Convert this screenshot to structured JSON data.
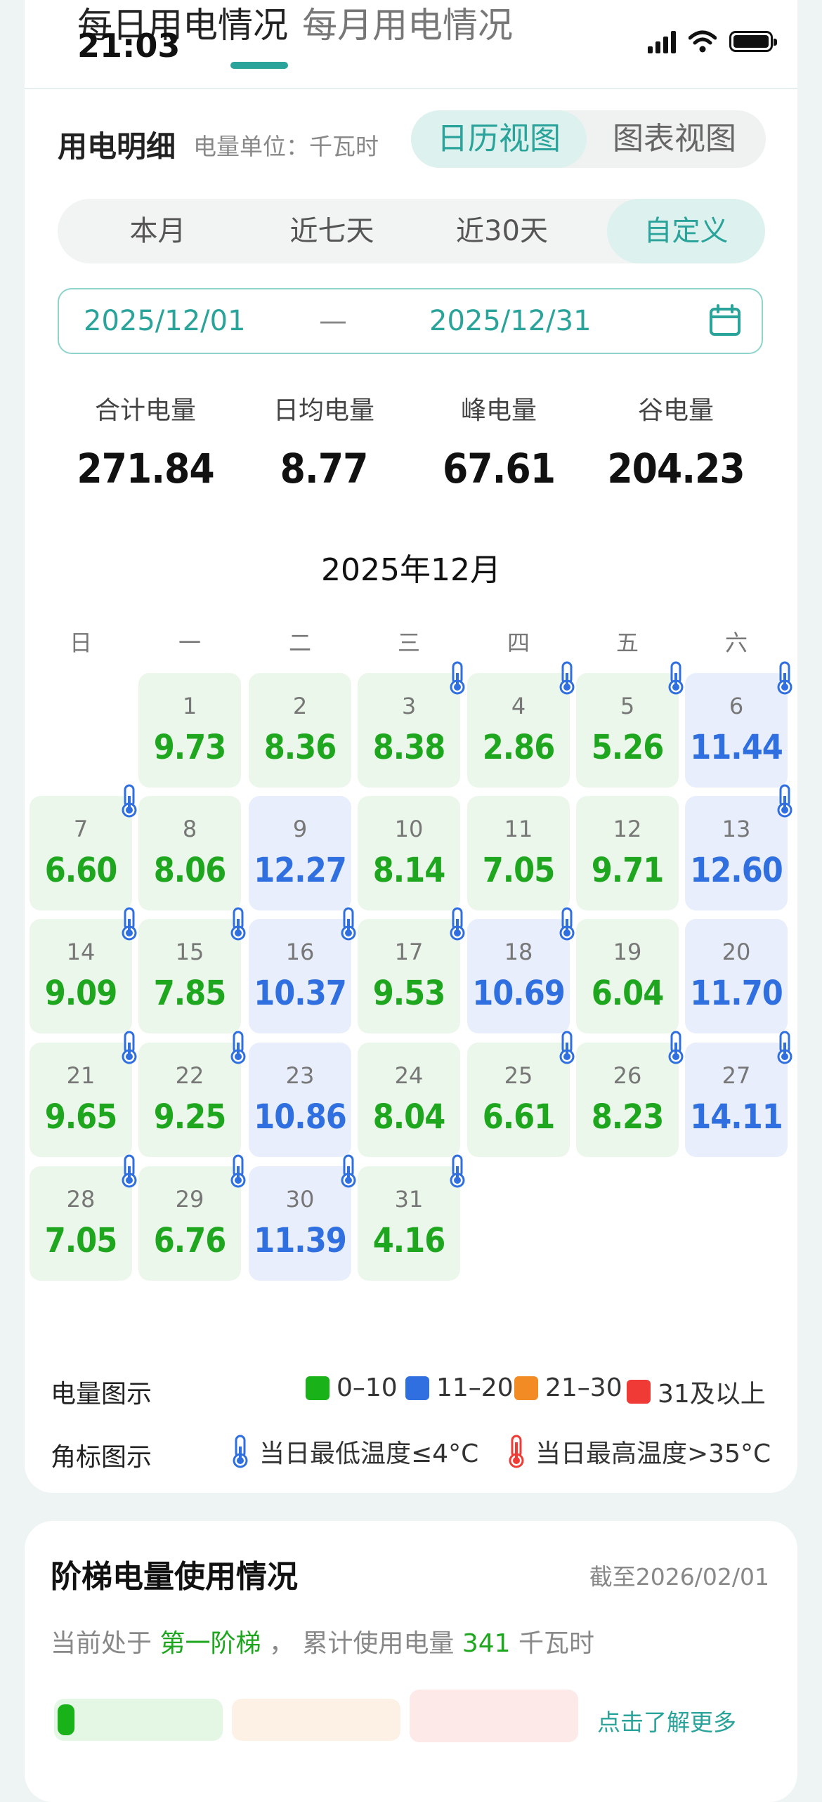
{
  "status_bar": {
    "time": "21:03"
  },
  "tabs": {
    "daily": "每日用电情况",
    "monthly": "每月用电情况"
  },
  "detail": {
    "title": "用电明细",
    "unit_label": "电量单位：千瓦时",
    "view_calendar": "日历视图",
    "view_chart": "图表视图"
  },
  "range_tabs": [
    "本月",
    "近七天",
    "近30天",
    "自定义"
  ],
  "date_range": {
    "start": "2025/12/01",
    "dash": "—",
    "end": "2025/12/31"
  },
  "stats": [
    {
      "label": "合计电量",
      "value": "271.84"
    },
    {
      "label": "日均电量",
      "value": "8.77"
    },
    {
      "label": "峰电量",
      "value": "67.61"
    },
    {
      "label": "谷电量",
      "value": "204.23"
    }
  ],
  "calendar": {
    "month_title": "2025年12月",
    "weekdays": [
      "日",
      "一",
      "二",
      "三",
      "四",
      "五",
      "六"
    ],
    "first_weekday": 1,
    "days": [
      {
        "day": "1",
        "kwh": "9.73",
        "level": "0-10",
        "cold": false
      },
      {
        "day": "2",
        "kwh": "8.36",
        "level": "0-10",
        "cold": false
      },
      {
        "day": "3",
        "kwh": "8.38",
        "level": "0-10",
        "cold": true
      },
      {
        "day": "4",
        "kwh": "2.86",
        "level": "0-10",
        "cold": true
      },
      {
        "day": "5",
        "kwh": "5.26",
        "level": "0-10",
        "cold": true
      },
      {
        "day": "6",
        "kwh": "11.44",
        "level": "11-20",
        "cold": true
      },
      {
        "day": "7",
        "kwh": "6.60",
        "level": "0-10",
        "cold": true
      },
      {
        "day": "8",
        "kwh": "8.06",
        "level": "0-10",
        "cold": false
      },
      {
        "day": "9",
        "kwh": "12.27",
        "level": "11-20",
        "cold": false
      },
      {
        "day": "10",
        "kwh": "8.14",
        "level": "0-10",
        "cold": false
      },
      {
        "day": "11",
        "kwh": "7.05",
        "level": "0-10",
        "cold": false
      },
      {
        "day": "12",
        "kwh": "9.71",
        "level": "0-10",
        "cold": false
      },
      {
        "day": "13",
        "kwh": "12.60",
        "level": "11-20",
        "cold": true
      },
      {
        "day": "14",
        "kwh": "9.09",
        "level": "0-10",
        "cold": true
      },
      {
        "day": "15",
        "kwh": "7.85",
        "level": "0-10",
        "cold": true
      },
      {
        "day": "16",
        "kwh": "10.37",
        "level": "11-20",
        "cold": true
      },
      {
        "day": "17",
        "kwh": "9.53",
        "level": "0-10",
        "cold": true
      },
      {
        "day": "18",
        "kwh": "10.69",
        "level": "11-20",
        "cold": true
      },
      {
        "day": "19",
        "kwh": "6.04",
        "level": "0-10",
        "cold": false
      },
      {
        "day": "20",
        "kwh": "11.70",
        "level": "11-20",
        "cold": false
      },
      {
        "day": "21",
        "kwh": "9.65",
        "level": "0-10",
        "cold": true
      },
      {
        "day": "22",
        "kwh": "9.25",
        "level": "0-10",
        "cold": true
      },
      {
        "day": "23",
        "kwh": "10.86",
        "level": "11-20",
        "cold": false
      },
      {
        "day": "24",
        "kwh": "8.04",
        "level": "0-10",
        "cold": false
      },
      {
        "day": "25",
        "kwh": "6.61",
        "level": "0-10",
        "cold": true
      },
      {
        "day": "26",
        "kwh": "8.23",
        "level": "0-10",
        "cold": true
      },
      {
        "day": "27",
        "kwh": "14.11",
        "level": "11-20",
        "cold": true
      },
      {
        "day": "28",
        "kwh": "7.05",
        "level": "0-10",
        "cold": true
      },
      {
        "day": "29",
        "kwh": "6.76",
        "level": "0-10",
        "cold": true
      },
      {
        "day": "30",
        "kwh": "11.39",
        "level": "11-20",
        "cold": true
      },
      {
        "day": "31",
        "kwh": "4.16",
        "level": "0-10",
        "cold": true
      }
    ]
  },
  "legend": {
    "amount_label": "电量图示",
    "amount_items": [
      {
        "label": "0–10",
        "color": "#19b319"
      },
      {
        "label": "11–20",
        "color": "#2f6fe0"
      },
      {
        "label": "21–30",
        "color": "#f28b24"
      },
      {
        "label": "31及以上",
        "color": "#ef3a36"
      }
    ],
    "corner_label": "角标图示",
    "cold_text": "当日最低温度≤4°C",
    "hot_text": "当日最高温度>35°C",
    "cold_color": "#2f6fe0",
    "hot_color": "#ef3a36"
  },
  "ladder": {
    "title": "阶梯电量使用情况",
    "as_of": "截至2026/02/01",
    "prefix": "当前处于",
    "tier": "第一阶梯",
    "middle": "，  累计使用电量",
    "amount": "341",
    "unit": "千瓦时",
    "more": "点击了解更多"
  }
}
